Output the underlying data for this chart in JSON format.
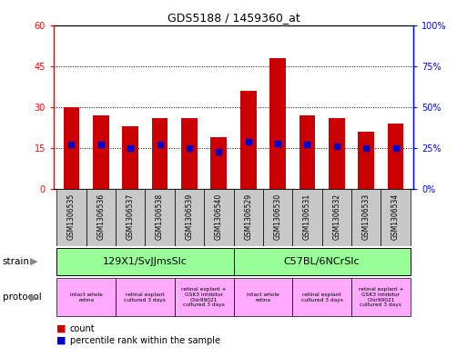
{
  "title": "GDS5188 / 1459360_at",
  "samples": [
    "GSM1306535",
    "GSM1306536",
    "GSM1306537",
    "GSM1306538",
    "GSM1306539",
    "GSM1306540",
    "GSM1306529",
    "GSM1306530",
    "GSM1306531",
    "GSM1306532",
    "GSM1306533",
    "GSM1306534"
  ],
  "counts": [
    30,
    27,
    23,
    26,
    26,
    19,
    36,
    48,
    27,
    26,
    21,
    24
  ],
  "percentiles": [
    27,
    27,
    25,
    27,
    25,
    23,
    29,
    28,
    27,
    26,
    25,
    25
  ],
  "ylim_left": [
    0,
    60
  ],
  "ylim_right": [
    0,
    100
  ],
  "yticks_left": [
    0,
    15,
    30,
    45,
    60
  ],
  "yticks_right": [
    0,
    25,
    50,
    75,
    100
  ],
  "bar_color": "#cc0000",
  "dot_color": "#0000cc",
  "strain_labels": [
    "129X1/SvJJmsSlc",
    "C57BL/6NCrSlc"
  ],
  "strain_color": "#99ff99",
  "protocol_labels": [
    "intact whole\nretina",
    "retinal explant\ncultured 3 days",
    "retinal explant +\nGSK3 inhibitor\nChir99021\ncultured 3 days",
    "intact whole\nretina",
    "retinal explant\ncultured 3 days",
    "retinal explant +\nGSK3 inhibitor\nChir99021\ncultured 3 days"
  ],
  "protocol_color": "#ffaaff",
  "legend_count_color": "#cc0000",
  "legend_pct_color": "#0000cc",
  "background_color": "#ffffff",
  "gridline_color": "#000000",
  "sample_box_color": "#c8c8c8",
  "arrow_color": "#888888"
}
